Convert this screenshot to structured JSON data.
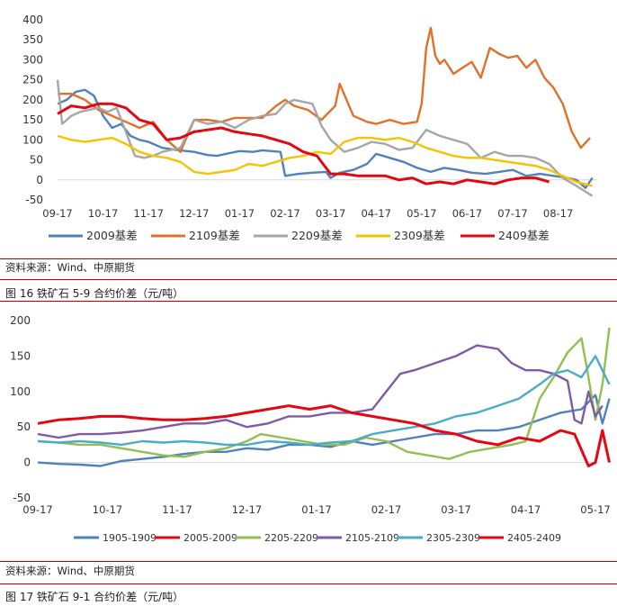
{
  "colors": {
    "s_blue": "#4f81bd",
    "s_orange": "#e0702a",
    "s_gray": "#a6a6a6",
    "s_yellow": "#f6c300",
    "s_red": "#e30613",
    "s_green": "#92c050",
    "s_purple": "#7f5aa8",
    "s_teal": "#4bacc6",
    "rule": "#c00000"
  },
  "captions": {
    "source1": "资料来源：Wind、中原期货",
    "figure16": "图 16  铁矿石 5-9 合约价差（元/吨）",
    "source2": "资料来源：Wind、中原期货",
    "figure17": "图 17  铁矿石 9-1 合约价差（元/吨）"
  },
  "chart_data": [
    {
      "type": "line",
      "title": "",
      "xlabel": "",
      "ylabel": "",
      "ylim": [
        -50,
        400
      ],
      "y_ticks": [
        -50,
        0,
        50,
        100,
        150,
        200,
        250,
        300,
        350,
        400
      ],
      "x_ticks": [
        "09-17",
        "10-17",
        "11-17",
        "12-17",
        "01-17",
        "02-17",
        "03-17",
        "04-17",
        "05-17",
        "06-17",
        "07-17",
        "08-17"
      ],
      "grid": false,
      "legend": "bottom",
      "series": [
        {
          "name": "2009基差",
          "color": "s_blue",
          "x": [
            0,
            0.2,
            0.4,
            0.6,
            0.8,
            1,
            1.2,
            1.4,
            1.6,
            1.8,
            2,
            2.3,
            2.6,
            3,
            3.3,
            3.5,
            3.7,
            4,
            4.3,
            4.5,
            4.7,
            4.9,
            5,
            5.3,
            5.6,
            5.9,
            6,
            6.2,
            6.5,
            6.8,
            7,
            7.3,
            7.6,
            7.9,
            8.2,
            8.5,
            8.8,
            9.1,
            9.4,
            9.7,
            10,
            10.3,
            10.6,
            10.9,
            11.2,
            11.4,
            11.6,
            11.75
          ],
          "y": [
            190,
            200,
            220,
            225,
            210,
            160,
            130,
            140,
            110,
            100,
            95,
            80,
            75,
            70,
            62,
            60,
            65,
            72,
            70,
            74,
            72,
            70,
            10,
            15,
            18,
            20,
            5,
            18,
            25,
            40,
            65,
            55,
            45,
            30,
            20,
            30,
            25,
            18,
            15,
            20,
            25,
            10,
            15,
            10,
            5,
            0,
            -20,
            5
          ]
        },
        {
          "name": "2109基差",
          "color": "s_orange",
          "x": [
            0,
            0.3,
            0.6,
            0.9,
            1.2,
            1.5,
            1.8,
            2.1,
            2.4,
            2.7,
            3,
            3.3,
            3.6,
            3.9,
            4.2,
            4.5,
            4.8,
            5,
            5.2,
            5.5,
            5.8,
            6.1,
            6.2,
            6.5,
            6.8,
            7,
            7.3,
            7.6,
            7.9,
            8,
            8.1,
            8.2,
            8.3,
            8.4,
            8.5,
            8.7,
            8.9,
            9.1,
            9.3,
            9.5,
            9.7,
            9.9,
            10.1,
            10.3,
            10.5,
            10.7,
            10.9,
            11.1,
            11.3,
            11.5,
            11.7
          ],
          "y": [
            215,
            215,
            200,
            175,
            160,
            145,
            130,
            145,
            100,
            70,
            150,
            150,
            145,
            155,
            155,
            155,
            185,
            200,
            185,
            175,
            150,
            185,
            240,
            160,
            145,
            140,
            150,
            140,
            145,
            190,
            330,
            380,
            310,
            290,
            300,
            265,
            280,
            295,
            255,
            330,
            315,
            305,
            310,
            280,
            300,
            255,
            230,
            190,
            120,
            80,
            105
          ]
        },
        {
          "name": "2209基差",
          "color": "s_gray",
          "x": [
            0,
            0.1,
            0.3,
            0.5,
            0.7,
            0.9,
            1.1,
            1.3,
            1.5,
            1.7,
            1.9,
            2.1,
            2.3,
            2.5,
            2.7,
            3,
            3.3,
            3.6,
            3.9,
            4.2,
            4.5,
            4.8,
            5,
            5.2,
            5.4,
            5.6,
            5.8,
            6,
            6.3,
            6.6,
            6.9,
            7.2,
            7.5,
            7.8,
            8.1,
            8.4,
            8.7,
            9,
            9.3,
            9.6,
            9.9,
            10.2,
            10.5,
            10.8,
            11.1,
            11.4,
            11.75
          ],
          "y": [
            250,
            140,
            160,
            170,
            175,
            180,
            170,
            180,
            120,
            60,
            55,
            60,
            70,
            75,
            80,
            150,
            140,
            145,
            130,
            150,
            160,
            165,
            190,
            200,
            195,
            190,
            135,
            100,
            70,
            80,
            95,
            90,
            75,
            80,
            125,
            110,
            100,
            90,
            55,
            70,
            60,
            60,
            55,
            40,
            5,
            -15,
            -40
          ]
        },
        {
          "name": "2309基差",
          "color": "s_yellow",
          "x": [
            0,
            0.3,
            0.6,
            0.9,
            1.2,
            1.5,
            1.8,
            2.1,
            2.4,
            2.7,
            3,
            3.3,
            3.6,
            3.9,
            4.2,
            4.5,
            4.8,
            5.1,
            5.4,
            5.7,
            6,
            6.3,
            6.6,
            6.9,
            7.2,
            7.5,
            7.8,
            8.1,
            8.4,
            8.7,
            9,
            9.3,
            9.6,
            9.9,
            10.2,
            10.5,
            10.8,
            11.1,
            11.4,
            11.75
          ],
          "y": [
            110,
            100,
            95,
            100,
            105,
            90,
            70,
            60,
            55,
            45,
            20,
            15,
            20,
            25,
            40,
            35,
            45,
            55,
            60,
            70,
            65,
            95,
            105,
            105,
            100,
            105,
            95,
            80,
            70,
            60,
            55,
            55,
            50,
            45,
            40,
            35,
            25,
            10,
            -5,
            -15
          ]
        },
        {
          "name": "2409基差",
          "color": "s_red",
          "x": [
            0,
            0.3,
            0.6,
            0.9,
            1.2,
            1.5,
            1.8,
            2.1,
            2.4,
            2.7,
            3,
            3.3,
            3.6,
            3.9,
            4.2,
            4.5,
            4.8,
            5.1,
            5.4,
            5.7,
            6,
            6.3,
            6.6,
            6.9,
            7.2,
            7.5,
            7.8,
            8.1,
            8.4,
            8.7,
            9,
            9.3,
            9.6,
            9.9,
            10.2,
            10.5,
            10.8
          ],
          "y": [
            165,
            185,
            180,
            190,
            190,
            180,
            150,
            140,
            100,
            105,
            120,
            125,
            130,
            120,
            115,
            110,
            100,
            90,
            70,
            60,
            15,
            15,
            10,
            10,
            10,
            0,
            5,
            -10,
            -5,
            -10,
            0,
            -5,
            -10,
            0,
            5,
            5,
            -5
          ]
        }
      ]
    },
    {
      "type": "line",
      "title": "",
      "xlabel": "",
      "ylabel": "",
      "ylim": [
        -50,
        200
      ],
      "y_ticks": [
        -50,
        0,
        50,
        100,
        150,
        200
      ],
      "x_ticks": [
        "09-17",
        "10-17",
        "11-17",
        "12-17",
        "01-17",
        "02-17",
        "03-17",
        "04-17",
        "05-17"
      ],
      "grid": false,
      "legend": "bottom",
      "series": [
        {
          "name": "1905-1909",
          "color": "s_blue",
          "x": [
            0,
            0.3,
            0.6,
            0.9,
            1.2,
            1.5,
            1.8,
            2.1,
            2.4,
            2.7,
            3,
            3.3,
            3.6,
            3.9,
            4.2,
            4.5,
            4.8,
            5.1,
            5.4,
            5.7,
            6,
            6.3,
            6.6,
            6.9,
            7.2,
            7.5,
            7.8,
            8,
            8.1,
            8.2
          ],
          "y": [
            0,
            -2,
            -3,
            -5,
            2,
            5,
            8,
            12,
            15,
            15,
            20,
            18,
            25,
            25,
            22,
            30,
            25,
            30,
            35,
            40,
            40,
            45,
            45,
            50,
            60,
            70,
            75,
            95,
            55,
            90
          ]
        },
        {
          "name": "2005-2009",
          "color": "s_red",
          "x": [],
          "y": []
        },
        {
          "name": "2205-2209",
          "color": "s_green",
          "x": [
            0,
            0.3,
            0.6,
            0.9,
            1.2,
            1.5,
            1.8,
            2.1,
            2.4,
            2.7,
            3,
            3.2,
            3.5,
            3.8,
            4.1,
            4.4,
            4.7,
            5,
            5.3,
            5.6,
            5.9,
            6.2,
            6.5,
            6.8,
            7,
            7.2,
            7.4,
            7.6,
            7.8,
            7.9,
            8,
            8.1,
            8.2
          ],
          "y": [
            30,
            28,
            25,
            25,
            20,
            15,
            10,
            8,
            15,
            20,
            30,
            40,
            35,
            30,
            25,
            25,
            35,
            30,
            15,
            10,
            5,
            15,
            20,
            25,
            30,
            90,
            120,
            155,
            175,
            120,
            60,
            110,
            190
          ]
        },
        {
          "name": "2105-2109",
          "color": "s_purple",
          "x": [
            0,
            0.3,
            0.6,
            0.9,
            1.2,
            1.5,
            1.8,
            2.1,
            2.4,
            2.7,
            3,
            3.3,
            3.6,
            3.9,
            4.2,
            4.5,
            4.8,
            5,
            5.2,
            5.4,
            5.7,
            6,
            6.3,
            6.6,
            6.8,
            7,
            7.2,
            7.4,
            7.6,
            7.7,
            7.8,
            7.9,
            8,
            8.1
          ],
          "y": [
            40,
            35,
            40,
            40,
            42,
            45,
            50,
            55,
            55,
            60,
            50,
            55,
            65,
            65,
            70,
            70,
            75,
            100,
            125,
            130,
            140,
            150,
            165,
            160,
            140,
            130,
            130,
            125,
            115,
            60,
            55,
            100,
            65,
            80
          ]
        },
        {
          "name": "2305-2309",
          "color": "s_teal",
          "x": [
            0,
            0.3,
            0.6,
            0.9,
            1.2,
            1.5,
            1.8,
            2.1,
            2.4,
            2.7,
            3,
            3.3,
            3.6,
            3.9,
            4.2,
            4.5,
            4.8,
            5.1,
            5.4,
            5.7,
            6,
            6.3,
            6.6,
            6.9,
            7.2,
            7.4,
            7.6,
            7.8,
            8,
            8.1,
            8.2
          ],
          "y": [
            30,
            28,
            30,
            28,
            25,
            30,
            28,
            30,
            28,
            25,
            25,
            30,
            28,
            25,
            28,
            30,
            40,
            45,
            50,
            55,
            65,
            70,
            80,
            90,
            110,
            125,
            130,
            120,
            150,
            130,
            110
          ]
        },
        {
          "name": "2405-2409",
          "color": "s_red",
          "x": [
            0,
            0.3,
            0.6,
            0.9,
            1.2,
            1.5,
            1.8,
            2.1,
            2.4,
            2.7,
            3,
            3.3,
            3.6,
            3.9,
            4.2,
            4.5,
            4.8,
            5.1,
            5.4,
            5.7,
            6,
            6.3,
            6.6,
            6.9,
            7.2,
            7.5,
            7.7,
            7.9,
            8,
            8.1,
            8.2
          ],
          "y": [
            55,
            60,
            62,
            65,
            65,
            62,
            60,
            60,
            62,
            65,
            70,
            75,
            80,
            75,
            80,
            70,
            65,
            60,
            55,
            45,
            40,
            30,
            25,
            35,
            30,
            45,
            40,
            -5,
            0,
            45,
            0
          ]
        }
      ]
    }
  ]
}
